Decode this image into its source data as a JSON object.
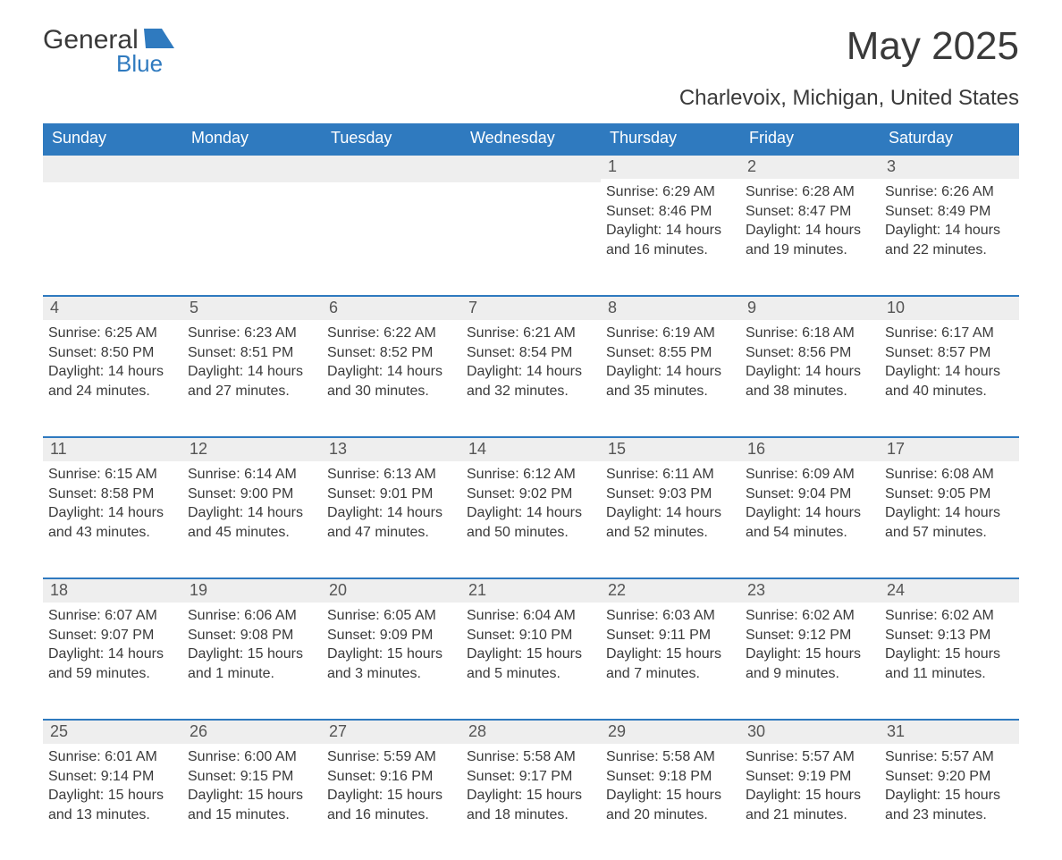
{
  "brand": {
    "name_main": "General",
    "name_sub": "Blue",
    "brand_color": "#2f7abf"
  },
  "title": "May 2025",
  "location": "Charlevoix, Michigan, United States",
  "colors": {
    "header_bg": "#2f7abf",
    "header_text": "#ffffff",
    "daynum_bg": "#eeeeee",
    "border": "#2f7abf",
    "text": "#3a3a3a",
    "background": "#ffffff"
  },
  "typography": {
    "title_fontsize": 44,
    "subtitle_fontsize": 24,
    "header_fontsize": 18,
    "daynum_fontsize": 18,
    "detail_fontsize": 16
  },
  "calendar": {
    "type": "table",
    "day_names": [
      "Sunday",
      "Monday",
      "Tuesday",
      "Wednesday",
      "Thursday",
      "Friday",
      "Saturday"
    ],
    "leading_blanks": 4,
    "days": [
      {
        "n": "1",
        "sunrise": "Sunrise: 6:29 AM",
        "sunset": "Sunset: 8:46 PM",
        "daylight": "Daylight: 14 hours and 16 minutes."
      },
      {
        "n": "2",
        "sunrise": "Sunrise: 6:28 AM",
        "sunset": "Sunset: 8:47 PM",
        "daylight": "Daylight: 14 hours and 19 minutes."
      },
      {
        "n": "3",
        "sunrise": "Sunrise: 6:26 AM",
        "sunset": "Sunset: 8:49 PM",
        "daylight": "Daylight: 14 hours and 22 minutes."
      },
      {
        "n": "4",
        "sunrise": "Sunrise: 6:25 AM",
        "sunset": "Sunset: 8:50 PM",
        "daylight": "Daylight: 14 hours and 24 minutes."
      },
      {
        "n": "5",
        "sunrise": "Sunrise: 6:23 AM",
        "sunset": "Sunset: 8:51 PM",
        "daylight": "Daylight: 14 hours and 27 minutes."
      },
      {
        "n": "6",
        "sunrise": "Sunrise: 6:22 AM",
        "sunset": "Sunset: 8:52 PM",
        "daylight": "Daylight: 14 hours and 30 minutes."
      },
      {
        "n": "7",
        "sunrise": "Sunrise: 6:21 AM",
        "sunset": "Sunset: 8:54 PM",
        "daylight": "Daylight: 14 hours and 32 minutes."
      },
      {
        "n": "8",
        "sunrise": "Sunrise: 6:19 AM",
        "sunset": "Sunset: 8:55 PM",
        "daylight": "Daylight: 14 hours and 35 minutes."
      },
      {
        "n": "9",
        "sunrise": "Sunrise: 6:18 AM",
        "sunset": "Sunset: 8:56 PM",
        "daylight": "Daylight: 14 hours and 38 minutes."
      },
      {
        "n": "10",
        "sunrise": "Sunrise: 6:17 AM",
        "sunset": "Sunset: 8:57 PM",
        "daylight": "Daylight: 14 hours and 40 minutes."
      },
      {
        "n": "11",
        "sunrise": "Sunrise: 6:15 AM",
        "sunset": "Sunset: 8:58 PM",
        "daylight": "Daylight: 14 hours and 43 minutes."
      },
      {
        "n": "12",
        "sunrise": "Sunrise: 6:14 AM",
        "sunset": "Sunset: 9:00 PM",
        "daylight": "Daylight: 14 hours and 45 minutes."
      },
      {
        "n": "13",
        "sunrise": "Sunrise: 6:13 AM",
        "sunset": "Sunset: 9:01 PM",
        "daylight": "Daylight: 14 hours and 47 minutes."
      },
      {
        "n": "14",
        "sunrise": "Sunrise: 6:12 AM",
        "sunset": "Sunset: 9:02 PM",
        "daylight": "Daylight: 14 hours and 50 minutes."
      },
      {
        "n": "15",
        "sunrise": "Sunrise: 6:11 AM",
        "sunset": "Sunset: 9:03 PM",
        "daylight": "Daylight: 14 hours and 52 minutes."
      },
      {
        "n": "16",
        "sunrise": "Sunrise: 6:09 AM",
        "sunset": "Sunset: 9:04 PM",
        "daylight": "Daylight: 14 hours and 54 minutes."
      },
      {
        "n": "17",
        "sunrise": "Sunrise: 6:08 AM",
        "sunset": "Sunset: 9:05 PM",
        "daylight": "Daylight: 14 hours and 57 minutes."
      },
      {
        "n": "18",
        "sunrise": "Sunrise: 6:07 AM",
        "sunset": "Sunset: 9:07 PM",
        "daylight": "Daylight: 14 hours and 59 minutes."
      },
      {
        "n": "19",
        "sunrise": "Sunrise: 6:06 AM",
        "sunset": "Sunset: 9:08 PM",
        "daylight": "Daylight: 15 hours and 1 minute."
      },
      {
        "n": "20",
        "sunrise": "Sunrise: 6:05 AM",
        "sunset": "Sunset: 9:09 PM",
        "daylight": "Daylight: 15 hours and 3 minutes."
      },
      {
        "n": "21",
        "sunrise": "Sunrise: 6:04 AM",
        "sunset": "Sunset: 9:10 PM",
        "daylight": "Daylight: 15 hours and 5 minutes."
      },
      {
        "n": "22",
        "sunrise": "Sunrise: 6:03 AM",
        "sunset": "Sunset: 9:11 PM",
        "daylight": "Daylight: 15 hours and 7 minutes."
      },
      {
        "n": "23",
        "sunrise": "Sunrise: 6:02 AM",
        "sunset": "Sunset: 9:12 PM",
        "daylight": "Daylight: 15 hours and 9 minutes."
      },
      {
        "n": "24",
        "sunrise": "Sunrise: 6:02 AM",
        "sunset": "Sunset: 9:13 PM",
        "daylight": "Daylight: 15 hours and 11 minutes."
      },
      {
        "n": "25",
        "sunrise": "Sunrise: 6:01 AM",
        "sunset": "Sunset: 9:14 PM",
        "daylight": "Daylight: 15 hours and 13 minutes."
      },
      {
        "n": "26",
        "sunrise": "Sunrise: 6:00 AM",
        "sunset": "Sunset: 9:15 PM",
        "daylight": "Daylight: 15 hours and 15 minutes."
      },
      {
        "n": "27",
        "sunrise": "Sunrise: 5:59 AM",
        "sunset": "Sunset: 9:16 PM",
        "daylight": "Daylight: 15 hours and 16 minutes."
      },
      {
        "n": "28",
        "sunrise": "Sunrise: 5:58 AM",
        "sunset": "Sunset: 9:17 PM",
        "daylight": "Daylight: 15 hours and 18 minutes."
      },
      {
        "n": "29",
        "sunrise": "Sunrise: 5:58 AM",
        "sunset": "Sunset: 9:18 PM",
        "daylight": "Daylight: 15 hours and 20 minutes."
      },
      {
        "n": "30",
        "sunrise": "Sunrise: 5:57 AM",
        "sunset": "Sunset: 9:19 PM",
        "daylight": "Daylight: 15 hours and 21 minutes."
      },
      {
        "n": "31",
        "sunrise": "Sunrise: 5:57 AM",
        "sunset": "Sunset: 9:20 PM",
        "daylight": "Daylight: 15 hours and 23 minutes."
      }
    ]
  }
}
